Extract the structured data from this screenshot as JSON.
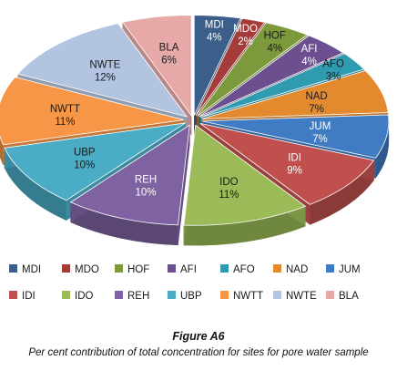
{
  "figure": {
    "title": "Figure A6",
    "caption": "Per cent contribution of total concentration for sites for pore water sample"
  },
  "chart_data": {
    "type": "pie",
    "variant": "3d-exploded",
    "title": "",
    "legend_position": "bottom",
    "series": [
      {
        "name": "MDI",
        "value": 4,
        "label": "4%",
        "color": "#3b5f8a"
      },
      {
        "name": "MDO",
        "value": 2,
        "label": "2%",
        "color": "#a53c3a"
      },
      {
        "name": "HOF",
        "value": 4,
        "label": "4%",
        "color": "#7c9a3c"
      },
      {
        "name": "AFI",
        "value": 4,
        "label": "4%",
        "color": "#6b4f8e"
      },
      {
        "name": "AFO",
        "value": 3,
        "label": "3%",
        "color": "#2f9bb0"
      },
      {
        "name": "NAD",
        "value": 7,
        "label": "7%",
        "color": "#e48a2e"
      },
      {
        "name": "JUM",
        "value": 7,
        "label": "7%",
        "color": "#3f7cc4"
      },
      {
        "name": "IDI",
        "value": 9,
        "label": "9%",
        "color": "#c0504d"
      },
      {
        "name": "IDO",
        "value": 11,
        "label": "11%",
        "color": "#9bbb59"
      },
      {
        "name": "REH",
        "value": 10,
        "label": "10%",
        "color": "#7e62a1"
      },
      {
        "name": "UBP",
        "value": 10,
        "label": "10%",
        "color": "#4bacc6"
      },
      {
        "name": "NWTT",
        "value": 11,
        "label": "11%",
        "color": "#f79646"
      },
      {
        "name": "NWTE",
        "value": 12,
        "label": "12%",
        "color": "#b3c4e0"
      },
      {
        "name": "BLA",
        "value": 6,
        "label": "6%",
        "color": "#e6a9a7"
      }
    ]
  }
}
